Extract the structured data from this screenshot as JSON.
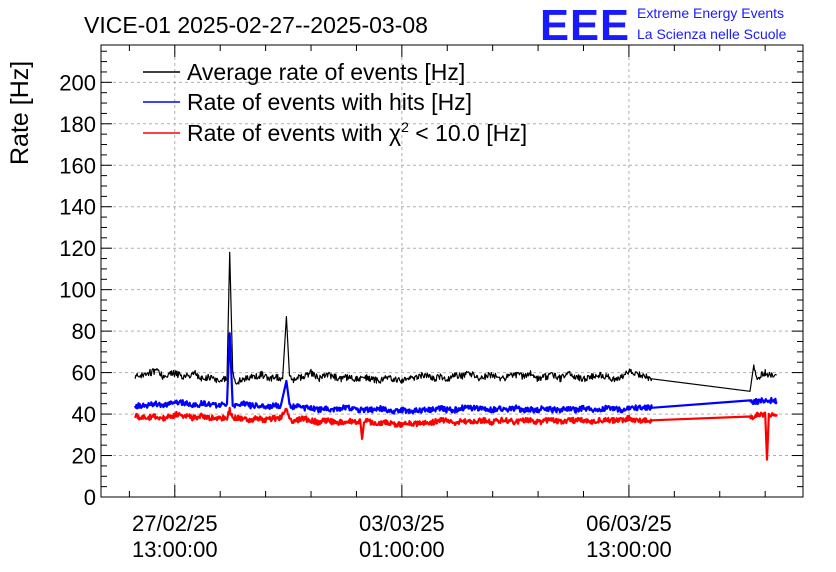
{
  "chart_data": {
    "type": "line",
    "title": "VICE-01 2025-02-27--2025-03-08",
    "xlabel": "",
    "ylabel": "Rate [Hz]",
    "ylim": [
      0,
      218
    ],
    "y_ticks": [
      0,
      20,
      40,
      60,
      80,
      100,
      120,
      140,
      160,
      180,
      200
    ],
    "xlim_hours": [
      -19.5,
      166
    ],
    "x_ticks": [
      {
        "hours": 0,
        "date": "27/02/25",
        "time": "13:00:00"
      },
      {
        "hours": 60,
        "date": "03/03/25",
        "time": "01:00:00"
      },
      {
        "hours": 120,
        "date": "06/03/25",
        "time": "13:00:00"
      }
    ],
    "legend": {
      "position": "top-left",
      "entries": [
        {
          "label": "Average rate of events [Hz]",
          "color": "#000000"
        },
        {
          "label": "Rate of events with hits [Hz]",
          "color": "#0000ff"
        },
        {
          "label_pre": "Rate of events with ",
          "label_chi": "χ",
          "label_sup": "2",
          "label_post": " < 10.0 [Hz]",
          "color": "#ff0000"
        }
      ]
    },
    "series": [
      {
        "name": "Average rate of events",
        "color": "#000000",
        "x_hours": [
          -10.5,
          -8,
          -5,
          -3,
          -1,
          1,
          3,
          5,
          7,
          9,
          11,
          13.8,
          14.5,
          15.3,
          16,
          17,
          19,
          21,
          23,
          25,
          27,
          28.5,
          29.5,
          30.3,
          31,
          32,
          34,
          36,
          38,
          40,
          42,
          44,
          46,
          48,
          50,
          52,
          54,
          56,
          58,
          60,
          62,
          64,
          66,
          68,
          70,
          72,
          74,
          76,
          78,
          80,
          82,
          84,
          86,
          88,
          90,
          92,
          94,
          96,
          98,
          100,
          102,
          104,
          106,
          108,
          110,
          112,
          114,
          116,
          118,
          120,
          121,
          123,
          126,
          152,
          153,
          154,
          155,
          156,
          157,
          159
        ],
        "values": [
          58,
          59,
          61,
          58,
          60,
          59,
          58,
          60,
          57,
          58,
          56,
          57,
          118,
          60,
          54,
          56,
          57,
          58,
          59,
          57,
          58,
          57,
          87,
          59,
          56,
          57,
          58,
          60,
          57,
          59,
          58,
          57,
          58,
          57,
          58,
          57,
          56,
          58,
          57,
          56,
          57,
          58,
          59,
          57,
          58,
          57,
          59,
          58,
          60,
          57,
          58,
          59,
          57,
          58,
          59,
          58,
          60,
          57,
          58,
          59,
          57,
          60,
          58,
          57,
          58,
          59,
          58,
          57,
          58,
          61,
          59,
          59,
          57,
          51,
          63,
          57,
          59,
          60,
          59,
          59
        ]
      },
      {
        "name": "Rate of events with hits",
        "color": "#0000ff",
        "x_hours": [
          -10.5,
          -8,
          -5,
          -3,
          -1,
          1,
          3,
          5,
          7,
          9,
          11,
          13.8,
          14.5,
          15.3,
          16,
          18,
          20,
          22,
          24,
          26,
          28,
          29.5,
          30.3,
          31,
          32,
          34,
          36,
          38,
          40,
          42,
          44,
          46,
          48,
          50,
          52,
          54,
          56,
          58,
          60,
          62,
          64,
          66,
          68,
          70,
          72,
          74,
          76,
          78,
          80,
          82,
          84,
          86,
          88,
          90,
          92,
          94,
          96,
          98,
          100,
          102,
          104,
          106,
          108,
          110,
          112,
          114,
          116,
          118,
          120,
          122,
          126,
          152,
          154,
          156,
          159
        ],
        "values": [
          44,
          44,
          45,
          44,
          45,
          46,
          45,
          44,
          45,
          45,
          44,
          45,
          79,
          45,
          44,
          45,
          44,
          44,
          43,
          44,
          44,
          56,
          44,
          43,
          44,
          43,
          43,
          42,
          43,
          42,
          43,
          43,
          42,
          42,
          42,
          43,
          42,
          41,
          42,
          41,
          42,
          42,
          42,
          43,
          42,
          42,
          43,
          43,
          43,
          42,
          42,
          43,
          42,
          43,
          42,
          42,
          42,
          43,
          42,
          42,
          43,
          42,
          43,
          42,
          42,
          43,
          43,
          42,
          43,
          43,
          43,
          46,
          46,
          47,
          46
        ]
      },
      {
        "name": "Rate of events with chi2 < 10.0",
        "color": "#ff0000",
        "x_hours": [
          -10.5,
          -8,
          -5,
          -3,
          -1,
          1,
          3,
          5,
          7,
          9,
          11,
          13.8,
          14.5,
          15.3,
          16,
          18,
          20,
          22,
          24,
          26,
          28,
          29.5,
          30.3,
          31,
          32,
          34,
          36,
          38,
          40,
          42,
          44,
          46,
          48,
          49,
          49.5,
          50,
          52,
          54,
          56,
          58,
          60,
          62,
          64,
          66,
          68,
          70,
          72,
          74,
          76,
          78,
          80,
          82,
          84,
          86,
          88,
          90,
          92,
          94,
          96,
          98,
          100,
          102,
          104,
          106,
          108,
          110,
          112,
          114,
          116,
          118,
          120,
          122,
          126,
          152,
          154,
          156,
          156.5,
          157,
          159
        ],
        "values": [
          39,
          38,
          39,
          38,
          39,
          40,
          39,
          38,
          39,
          38,
          38,
          38,
          42,
          39,
          38,
          38,
          37,
          38,
          37,
          38,
          38,
          42,
          38,
          37,
          37,
          38,
          37,
          36,
          37,
          36,
          36,
          37,
          36,
          37,
          28,
          37,
          36,
          35,
          36,
          35,
          35,
          36,
          35,
          36,
          36,
          37,
          37,
          36,
          37,
          36,
          37,
          37,
          36,
          37,
          37,
          36,
          37,
          37,
          36,
          37,
          37,
          36,
          37,
          37,
          37,
          36,
          37,
          37,
          37,
          37,
          38,
          37,
          37,
          38,
          40,
          40,
          18,
          40,
          40
        ]
      }
    ]
  },
  "branding": {
    "logo": "EEE",
    "line1": "Extreme Energy Events",
    "line2": "La Scienza nelle Scuole"
  }
}
